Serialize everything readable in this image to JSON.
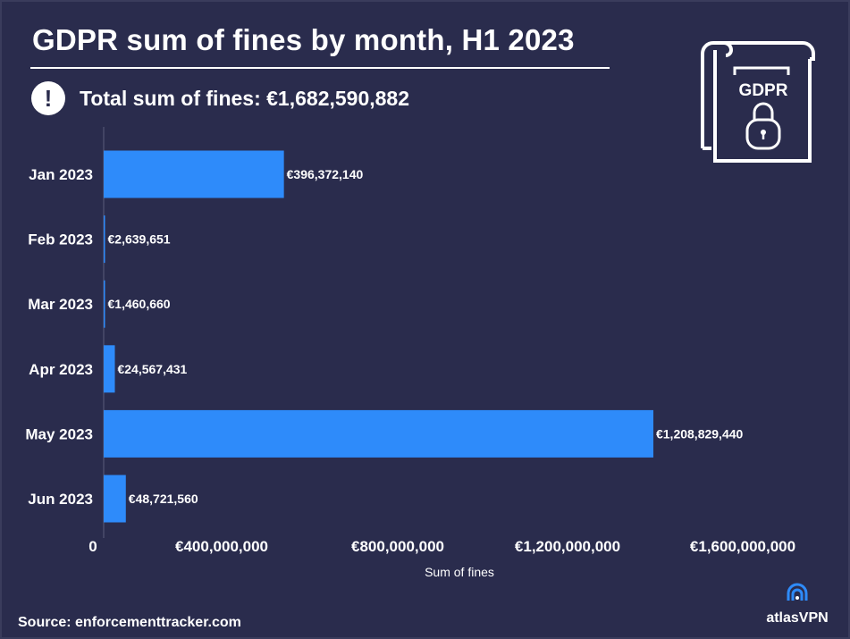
{
  "header": {
    "title": "GDPR sum of fines by month, H1 2023",
    "total_text": "Total sum of fines: €1,682,590,882",
    "alert_icon": "!"
  },
  "badge": {
    "text": "GDPR",
    "icon": "document-lock-icon"
  },
  "footer": {
    "source": "Source: enforcementtracker.com",
    "brand": "atlasVPN"
  },
  "colors": {
    "background": "#2a2c4d",
    "bar": "#2e8bfa",
    "text": "#ffffff"
  },
  "chart_data": {
    "type": "bar",
    "orientation": "horizontal",
    "categories": [
      "Jan 2023",
      "Feb 2023",
      "Mar 2023",
      "Apr 2023",
      "May 2023",
      "Jun 2023"
    ],
    "values": [
      396372140,
      2639651,
      1460660,
      24567431,
      1208829440,
      48721560
    ],
    "value_labels": [
      "€396,372,140",
      "€2,639,651",
      "€1,460,660",
      "€24,567,431",
      "€1,208,829,440",
      "€48,721,560"
    ],
    "title": "GDPR sum of fines by month, H1 2023",
    "xlabel": "Sum of fines",
    "ylabel": "",
    "xlim": [
      0,
      1600000000
    ],
    "xticks": [
      0,
      400000000,
      800000000,
      1200000000,
      1600000000
    ],
    "xtick_labels": [
      "0",
      "€400,000,000",
      "€800,000,000",
      "€1,200,000,000",
      "€1,600,000,000"
    ],
    "grid": false,
    "legend": "none"
  }
}
